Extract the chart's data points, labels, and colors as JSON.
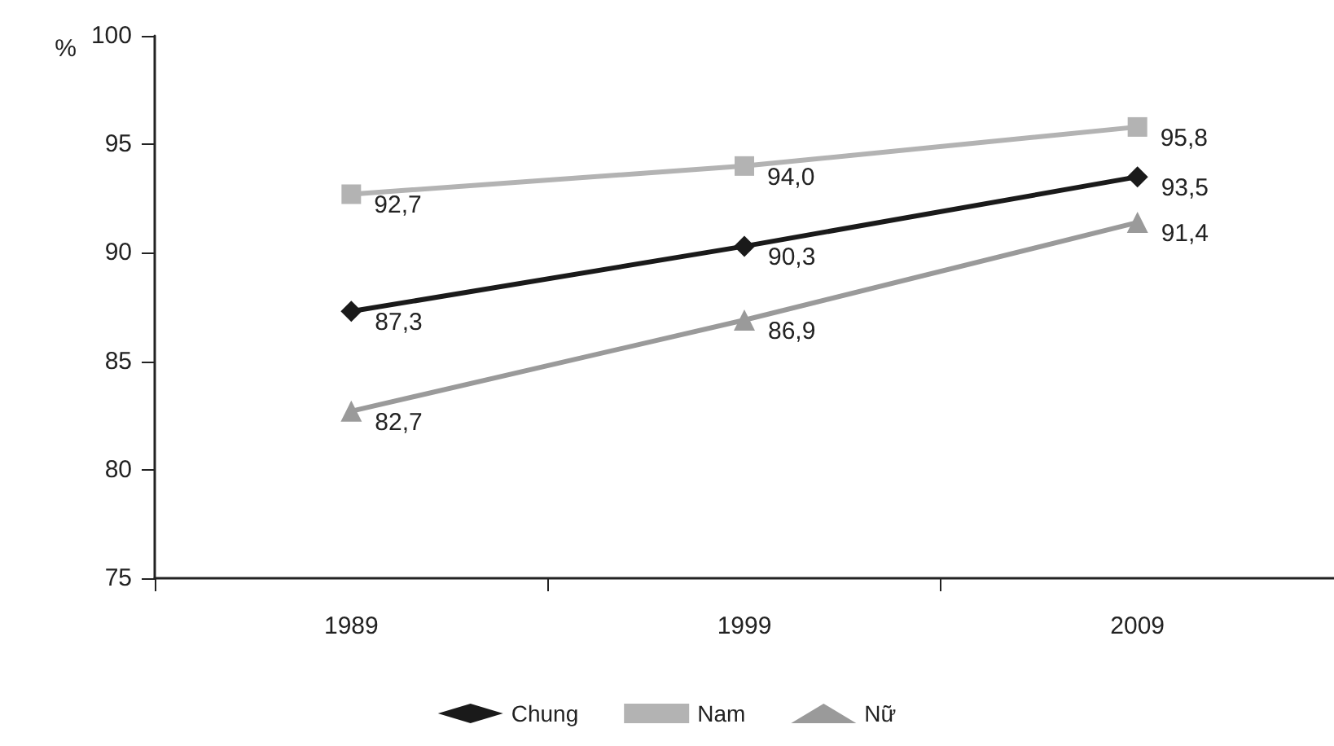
{
  "chart_data": {
    "type": "line",
    "ylabel": "%",
    "categories": [
      "1989",
      "1999",
      "2009"
    ],
    "series": [
      {
        "name": "Chung",
        "color": "#1a1a1a",
        "marker": "diamond",
        "values": [
          87.3,
          90.3,
          93.5
        ],
        "value_labels": [
          "87,3",
          "90,3",
          "93,5"
        ]
      },
      {
        "name": "Nam",
        "color": "#b3b3b3",
        "marker": "square",
        "values": [
          92.7,
          94.0,
          95.8
        ],
        "value_labels": [
          "92,7",
          "94,0",
          "95,8"
        ]
      },
      {
        "name": "Nữ",
        "color": "#9a9a9a",
        "marker": "triangle",
        "values": [
          82.7,
          86.9,
          91.4
        ],
        "value_labels": [
          "82,7",
          "86,9",
          "91,4"
        ]
      }
    ],
    "ylim": [
      75,
      100
    ],
    "yticks": [
      75,
      80,
      85,
      90,
      95,
      100
    ],
    "grid": false,
    "legend": "bottom",
    "line_style": "solid"
  }
}
